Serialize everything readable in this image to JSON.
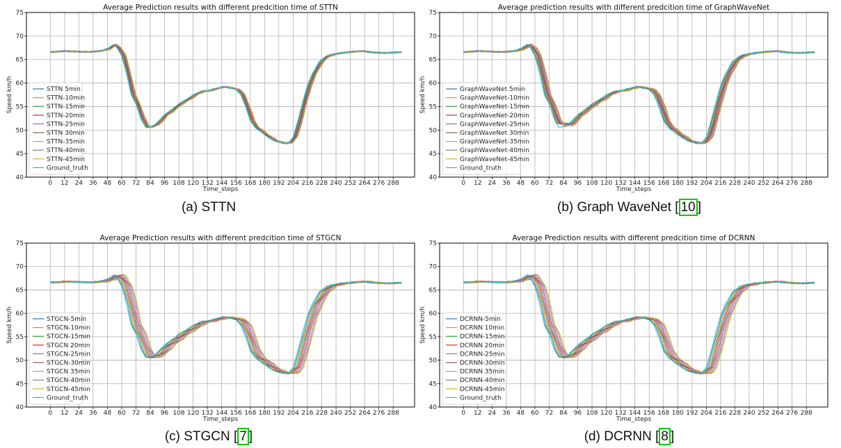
{
  "colors": [
    "#1f77b4",
    "#ff7f0e",
    "#2ca02c",
    "#d62728",
    "#9467bd",
    "#8c564b",
    "#e377c2",
    "#7f7f7f",
    "#bcbd22",
    "#17becf"
  ],
  "chart_data": [
    {
      "type": "line",
      "title": "Average Prediction results with different predcition time of STTN",
      "caption": "(a) STTN",
      "caption_ref": "",
      "xlabel": "Time_steps",
      "ylabel": "Speed km/h",
      "xlim": [
        -20,
        306
      ],
      "ylim": [
        40,
        75
      ],
      "xticks": [
        0,
        12,
        24,
        36,
        48,
        60,
        72,
        84,
        96,
        108,
        120,
        132,
        144,
        156,
        168,
        180,
        192,
        204,
        216,
        228,
        240,
        252,
        264,
        276,
        288
      ],
      "yticks": [
        40,
        45,
        50,
        55,
        60,
        65,
        70,
        75
      ],
      "grid": true,
      "legend": "lower-left",
      "lag_base": 0.6,
      "lag_step": 0.4,
      "dip_min": 50.2,
      "series": [
        {
          "name": "STTN 5min"
        },
        {
          "name": "STTN-10min"
        },
        {
          "name": "STTN-15min"
        },
        {
          "name": "STTN-20min"
        },
        {
          "name": "STTN-25min"
        },
        {
          "name": "STTN 30min"
        },
        {
          "name": "STTN-35min"
        },
        {
          "name": "STTN-40min"
        },
        {
          "name": "STTN-45min"
        },
        {
          "name": "Ground_truth"
        }
      ]
    },
    {
      "type": "line",
      "title": "Average prediction results with different predcition time of GraphWaveNet",
      "caption": "(b) Graph WaveNet [",
      "caption_ref": "10",
      "caption_end": "]",
      "xlabel": "Time_steps",
      "ylabel": "Speed km/h",
      "xlim": [
        -20,
        306
      ],
      "ylim": [
        40,
        75
      ],
      "xticks": [
        0,
        12,
        24,
        36,
        48,
        60,
        72,
        84,
        96,
        108,
        120,
        132,
        144,
        156,
        168,
        180,
        192,
        204,
        216,
        228,
        240,
        252,
        264,
        276,
        288
      ],
      "yticks": [
        40,
        45,
        50,
        55,
        60,
        65,
        70,
        75
      ],
      "grid": true,
      "legend": "lower-left",
      "lag_base": 0.8,
      "lag_step": 0.6,
      "dip_min": 51.5,
      "series": [
        {
          "name": "GraphWaveNet 5min"
        },
        {
          "name": "GraphWaveNet-10min"
        },
        {
          "name": "GraphWaveNet-15min"
        },
        {
          "name": "GraphWaveNet-20min"
        },
        {
          "name": "GraphWaveNet-25min"
        },
        {
          "name": "GraphWaveNet 30min"
        },
        {
          "name": "GraphWaveNet-35min"
        },
        {
          "name": "GraphWaveNet-40min"
        },
        {
          "name": "GraphWaveNet-45min"
        },
        {
          "name": "Ground_truth"
        }
      ]
    },
    {
      "type": "line",
      "title": "Average Prediction results with different predcition time of STGCN",
      "caption": "(c) STGCN [",
      "caption_ref": "7",
      "caption_end": "]",
      "xlabel": "Time_steps",
      "ylabel": "Speed km/h",
      "xlim": [
        -20,
        306
      ],
      "ylim": [
        40,
        75
      ],
      "xticks": [
        0,
        12,
        24,
        36,
        48,
        60,
        72,
        84,
        96,
        108,
        120,
        132,
        144,
        156,
        168,
        180,
        192,
        204,
        216,
        228,
        240,
        252,
        264,
        276,
        288
      ],
      "yticks": [
        40,
        45,
        50,
        55,
        60,
        65,
        70,
        75
      ],
      "grid": true,
      "legend": "lower-left",
      "lag_base": 1.0,
      "lag_step": 1.0,
      "dip_min": 50.0,
      "series": [
        {
          "name": "STGCN-5min"
        },
        {
          "name": "STGCN-10min"
        },
        {
          "name": "STGCN-15min"
        },
        {
          "name": "STGCN 20min"
        },
        {
          "name": "STGCN-25min"
        },
        {
          "name": "STGCN-30min"
        },
        {
          "name": "STGCN 35min"
        },
        {
          "name": "STGCN-40min"
        },
        {
          "name": "STGCN-45min"
        },
        {
          "name": "Ground_truth"
        }
      ]
    },
    {
      "type": "line",
      "title": "Average Prediction results with different predcition time of DCRNN",
      "caption": "(d) DCRNN [",
      "caption_ref": "8",
      "caption_end": "]",
      "xlabel": "Time_steps",
      "ylabel": "Speed km/h",
      "xlim": [
        -20,
        306
      ],
      "ylim": [
        40,
        75
      ],
      "xticks": [
        0,
        12,
        24,
        36,
        48,
        60,
        72,
        84,
        96,
        108,
        120,
        132,
        144,
        156,
        168,
        180,
        192,
        204,
        216,
        228,
        240,
        252,
        264,
        276,
        288
      ],
      "yticks": [
        40,
        45,
        50,
        55,
        60,
        65,
        70,
        75
      ],
      "grid": true,
      "legend": "lower-left",
      "lag_base": 1.0,
      "lag_step": 1.0,
      "dip_min": 50.5,
      "series": [
        {
          "name": "DCRNN-5min"
        },
        {
          "name": "DCRNN 10min"
        },
        {
          "name": "DCRNN-15min"
        },
        {
          "name": "DCRNN 20min"
        },
        {
          "name": "DCRNN-25min"
        },
        {
          "name": "DCRNN-30min"
        },
        {
          "name": "DCRNN 35min"
        },
        {
          "name": "DCRNN-40min"
        },
        {
          "name": "DCRNN-45min"
        },
        {
          "name": "Ground_truth"
        }
      ]
    }
  ],
  "ground_truth_points": {
    "x": [
      0,
      10,
      20,
      30,
      40,
      48,
      53,
      56,
      60,
      64,
      68,
      72,
      76,
      80,
      84,
      88,
      92,
      96,
      100,
      108,
      116,
      120,
      126,
      132,
      138,
      144,
      150,
      156,
      160,
      164,
      168,
      172,
      176,
      180,
      184,
      188,
      192,
      196,
      200,
      204,
      208,
      212,
      216,
      220,
      226,
      232,
      240,
      250,
      260,
      270,
      280,
      288,
      295
    ],
    "y": [
      66.6,
      66.8,
      66.7,
      66.6,
      66.8,
      67.3,
      68.2,
      67.5,
      65.8,
      62.0,
      57.5,
      55.5,
      52.5,
      50.6,
      50.7,
      51.2,
      52.2,
      53.3,
      54.0,
      55.6,
      56.8,
      57.5,
      58.2,
      58.4,
      58.8,
      59.2,
      59.0,
      58.6,
      57.5,
      55.0,
      52.0,
      50.5,
      49.8,
      49.0,
      48.3,
      47.7,
      47.4,
      47.2,
      47.3,
      48.5,
      52.0,
      56.0,
      59.5,
      62.0,
      64.6,
      65.8,
      66.3,
      66.6,
      66.8,
      66.5,
      66.4,
      66.5,
      66.6
    ]
  }
}
